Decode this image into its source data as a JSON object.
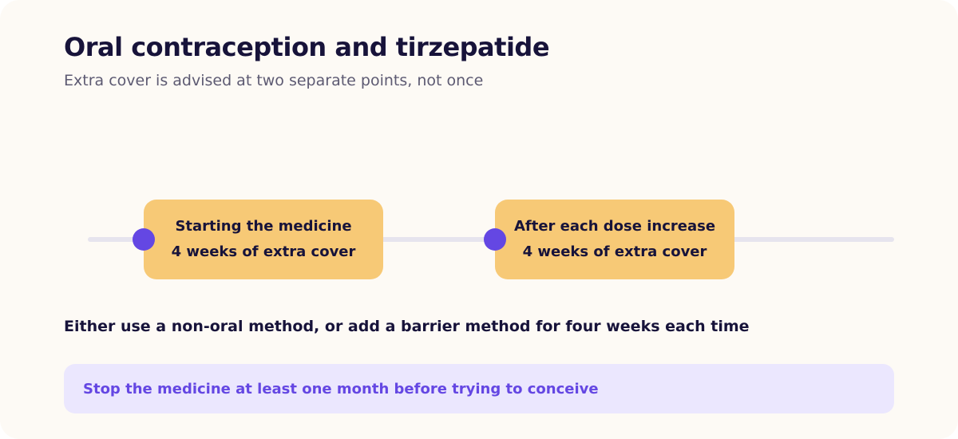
{
  "header": {
    "title": "Oral contraception and tirzepatide",
    "subtitle": "Extra cover is advised at two separate points, not once"
  },
  "timeline": {
    "points": [
      {
        "label": "Starting the medicine",
        "detail": "4 weeks of extra cover"
      },
      {
        "label": "After each dose increase",
        "detail": "4 weeks of extra cover"
      }
    ]
  },
  "advice": "Either use a non-oral method, or add a barrier method for four weeks each time",
  "banner": "Stop the medicine at least one month before trying to conceive",
  "colors": {
    "accent": "#6447e3",
    "box": "#f7c976",
    "banner_bg": "#ebe7fe",
    "text": "#17133a"
  }
}
